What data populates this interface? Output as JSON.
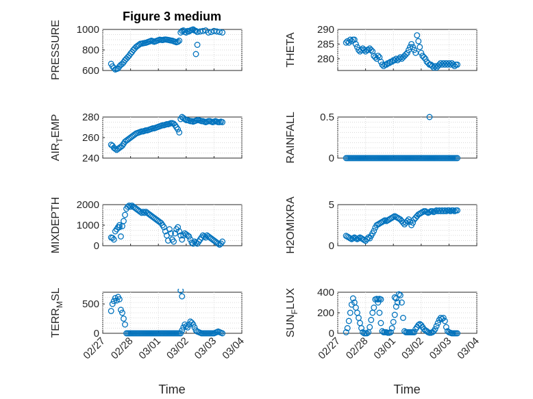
{
  "title": "Figure 3 medium",
  "xlabel": "Time",
  "xticks": [
    "02/27",
    "02/28",
    "03/01",
    "03/02",
    "03/03",
    "03/04"
  ],
  "colors": {
    "marker": "#0072bd",
    "axis": "#262626",
    "grid": "#d9d9d9"
  },
  "chart_data": [
    {
      "type": "scatter",
      "name": "PRESSURE",
      "ylabel": "PRESSURE",
      "ylim": [
        600,
        1000
      ],
      "yticks": [
        "600",
        "800",
        "1000"
      ],
      "grid": true,
      "x": [
        0.3,
        0.35,
        0.4,
        0.45,
        0.5,
        0.55,
        0.6,
        0.65,
        0.7,
        0.75,
        0.8,
        0.85,
        0.9,
        0.95,
        1.0,
        1.05,
        1.1,
        1.15,
        1.2,
        1.25,
        1.3,
        1.35,
        1.4,
        1.45,
        1.5,
        1.55,
        1.6,
        1.65,
        1.7,
        1.75,
        1.8,
        1.85,
        1.9,
        1.95,
        2.0,
        2.05,
        2.1,
        2.15,
        2.2,
        2.25,
        2.3,
        2.35,
        2.4,
        2.45,
        2.5,
        2.55,
        2.6,
        2.65,
        2.7,
        2.75,
        2.8,
        2.85,
        2.9,
        2.95,
        3.0,
        3.05,
        3.1,
        3.15,
        3.2,
        3.25,
        3.3,
        3.35,
        3.4,
        3.5,
        3.6,
        3.7,
        3.8,
        3.9,
        4.0,
        4.1,
        4.2,
        4.3,
        3.35,
        3.4
      ],
      "y": [
        665,
        640,
        625,
        610,
        615,
        620,
        640,
        655,
        665,
        680,
        700,
        715,
        730,
        745,
        765,
        780,
        800,
        815,
        830,
        840,
        850,
        860,
        862,
        865,
        868,
        870,
        875,
        880,
        885,
        890,
        885,
        880,
        885,
        890,
        895,
        900,
        898,
        896,
        900,
        902,
        900,
        898,
        895,
        892,
        890,
        885,
        880,
        875,
        880,
        890,
        970,
        985,
        990,
        975,
        970,
        985,
        980,
        990,
        995,
        1000,
        990,
        985,
        975,
        980,
        985,
        990,
        970,
        975,
        985,
        980,
        975,
        970,
        760,
        850
      ]
    },
    {
      "type": "scatter",
      "name": "THETA",
      "ylabel": "THETA",
      "ylim": [
        276,
        290
      ],
      "yticks": [
        "280",
        "285",
        "290"
      ],
      "grid": true,
      "x": [
        0.3,
        0.35,
        0.4,
        0.45,
        0.5,
        0.55,
        0.6,
        0.65,
        0.7,
        0.75,
        0.8,
        0.85,
        0.9,
        0.95,
        1.0,
        1.05,
        1.1,
        1.15,
        1.2,
        1.25,
        1.3,
        1.35,
        1.4,
        1.45,
        1.5,
        1.55,
        1.6,
        1.65,
        1.7,
        1.75,
        1.8,
        1.85,
        1.9,
        1.95,
        2.0,
        2.05,
        2.1,
        2.15,
        2.2,
        2.25,
        2.3,
        2.35,
        2.4,
        2.45,
        2.5,
        2.55,
        2.6,
        2.65,
        2.7,
        2.75,
        2.8,
        2.85,
        2.9,
        2.95,
        3.0,
        3.05,
        3.1,
        3.15,
        3.2,
        3.25,
        3.3,
        3.35,
        3.4,
        3.45,
        3.5,
        3.55,
        3.6,
        3.65,
        3.7,
        3.75,
        3.8,
        3.85,
        3.9,
        3.95,
        4.0,
        4.05,
        4.1,
        4.15,
        4.2,
        4.25,
        4.3
      ],
      "y": [
        285.5,
        286,
        285.5,
        286.5,
        286,
        286.5,
        286.5,
        285,
        284,
        283,
        282.5,
        283,
        283.5,
        283,
        282.5,
        283,
        283,
        283.5,
        283,
        282.5,
        281,
        280.5,
        280,
        281,
        280.5,
        279,
        278,
        277.5,
        278,
        278,
        278.5,
        278.5,
        279,
        279,
        279.5,
        279.5,
        280,
        279.5,
        280,
        280.5,
        280,
        280.5,
        281,
        281.5,
        282,
        283,
        284,
        285,
        284,
        283,
        282,
        288,
        286,
        284,
        282,
        281,
        280.5,
        280,
        279,
        278.5,
        278,
        278,
        277.5,
        277,
        277.5,
        277,
        277.5,
        278,
        278.5,
        278,
        278.5,
        278,
        278.5,
        278,
        278.5,
        278,
        278.5,
        278,
        277.5,
        278,
        278
      ]
    },
    {
      "type": "scatter",
      "name": "AIR_TEMP",
      "ylabel": "AIR_TEMP",
      "ylim": [
        240,
        280
      ],
      "yticks": [
        "240",
        "260",
        "280"
      ],
      "grid": true,
      "x": [
        0.3,
        0.35,
        0.4,
        0.45,
        0.5,
        0.55,
        0.6,
        0.65,
        0.7,
        0.75,
        0.8,
        0.85,
        0.9,
        0.95,
        1.0,
        1.05,
        1.1,
        1.15,
        1.2,
        1.25,
        1.3,
        1.35,
        1.4,
        1.45,
        1.5,
        1.55,
        1.6,
        1.65,
        1.7,
        1.75,
        1.8,
        1.85,
        1.9,
        1.95,
        2.0,
        2.05,
        2.1,
        2.15,
        2.2,
        2.25,
        2.3,
        2.35,
        2.4,
        2.45,
        2.5,
        2.55,
        2.6,
        2.65,
        2.7,
        2.75,
        2.8,
        2.85,
        2.9,
        2.95,
        3.0,
        3.05,
        3.1,
        3.15,
        3.2,
        3.25,
        3.3,
        3.35,
        3.4,
        3.45,
        3.5,
        3.55,
        3.6,
        3.65,
        3.7,
        3.75,
        3.8,
        3.85,
        3.9,
        3.95,
        4.0,
        4.05,
        4.1,
        4.15,
        4.2,
        4.25,
        4.3
      ],
      "y": [
        253,
        252,
        250,
        249,
        248,
        249,
        250,
        251,
        252,
        254,
        256,
        257,
        258,
        259,
        260,
        261,
        262,
        263,
        264,
        264.5,
        265,
        265.5,
        266,
        266,
        266.5,
        267,
        267,
        267.5,
        268,
        268.5,
        269,
        269,
        269.5,
        270,
        270.5,
        271,
        271.5,
        272,
        272,
        272.5,
        273,
        273,
        273.5,
        274,
        274,
        273.5,
        272,
        270,
        268,
        265,
        278,
        280,
        279,
        278,
        277,
        277,
        276.5,
        276,
        276,
        275.5,
        276,
        276.5,
        277,
        277,
        276.5,
        276,
        276,
        275.5,
        275,
        275.5,
        276,
        276,
        275.5,
        275,
        275.5,
        276,
        275.5,
        275,
        275,
        275.5,
        275
      ]
    },
    {
      "type": "scatter",
      "name": "RAINFALL",
      "ylabel": "RAINFALL",
      "ylim": [
        0,
        0.5
      ],
      "yticks": [
        "0",
        "0.5"
      ],
      "grid": true,
      "x": [
        0.3,
        0.35,
        0.4,
        0.45,
        0.5,
        0.55,
        0.6,
        0.65,
        0.7,
        0.75,
        0.8,
        0.85,
        0.9,
        0.95,
        1.0,
        1.05,
        1.1,
        1.15,
        1.2,
        1.25,
        1.3,
        1.35,
        1.4,
        1.45,
        1.5,
        1.55,
        1.6,
        1.65,
        1.7,
        1.75,
        1.8,
        1.85,
        1.9,
        1.95,
        2.0,
        2.05,
        2.1,
        2.15,
        2.2,
        2.25,
        2.3,
        2.35,
        2.4,
        2.45,
        2.5,
        2.55,
        2.6,
        2.65,
        2.7,
        2.75,
        2.8,
        2.85,
        2.9,
        2.95,
        3.0,
        3.05,
        3.1,
        3.15,
        3.2,
        3.25,
        3.3,
        3.35,
        3.4,
        3.45,
        3.5,
        3.55,
        3.6,
        3.65,
        3.7,
        3.75,
        3.8,
        3.85,
        3.9,
        3.95,
        4.0,
        4.05,
        4.1,
        4.15,
        4.2,
        4.25,
        4.3,
        3.3
      ],
      "y": [
        0,
        0,
        0,
        0,
        0,
        0,
        0,
        0,
        0,
        0,
        0,
        0,
        0,
        0,
        0,
        0,
        0,
        0,
        0,
        0,
        0,
        0,
        0,
        0,
        0,
        0,
        0,
        0,
        0,
        0,
        0,
        0,
        0,
        0,
        0,
        0,
        0,
        0,
        0,
        0,
        0,
        0,
        0,
        0,
        0,
        0,
        0,
        0,
        0,
        0,
        0,
        0,
        0,
        0,
        0,
        0,
        0,
        0,
        0,
        0,
        0,
        0,
        0,
        0,
        0,
        0,
        0,
        0,
        0,
        0,
        0,
        0,
        0,
        0,
        0,
        0,
        0,
        0,
        0,
        0,
        0,
        0.5
      ]
    },
    {
      "type": "scatter",
      "name": "MIXDEPTH",
      "ylabel": "MIXDEPTH",
      "ylim": [
        0,
        2000
      ],
      "yticks": [
        "0",
        "1000",
        "2000"
      ],
      "grid": true,
      "x": [
        0.3,
        0.35,
        0.4,
        0.45,
        0.5,
        0.55,
        0.6,
        0.65,
        0.7,
        0.75,
        0.8,
        0.85,
        0.9,
        0.95,
        1.0,
        1.05,
        1.1,
        1.15,
        1.2,
        1.25,
        1.3,
        1.35,
        1.4,
        1.45,
        1.5,
        1.55,
        1.6,
        1.65,
        1.7,
        1.75,
        1.8,
        1.85,
        1.9,
        1.95,
        2.0,
        2.05,
        2.1,
        2.15,
        2.2,
        2.25,
        2.3,
        2.35,
        2.4,
        2.45,
        2.5,
        2.55,
        2.6,
        2.65,
        2.7,
        2.75,
        2.8,
        2.85,
        2.9,
        2.95,
        3.0,
        3.05,
        3.1,
        3.15,
        3.2,
        3.25,
        3.3,
        3.35,
        3.4,
        3.45,
        3.5,
        3.55,
        3.6,
        3.65,
        3.7,
        3.75,
        3.8,
        3.85,
        3.9,
        3.95,
        4.0,
        4.05,
        4.1,
        4.15,
        4.2,
        4.25,
        4.3,
        0.6
      ],
      "y": [
        400,
        380,
        300,
        700,
        800,
        900,
        1000,
        450,
        950,
        1200,
        1500,
        1800,
        1900,
        1950,
        1900,
        1950,
        1900,
        1850,
        1800,
        1750,
        1700,
        1650,
        1600,
        1650,
        1600,
        1650,
        1600,
        1550,
        1500,
        1450,
        1400,
        1350,
        1300,
        1250,
        1200,
        1150,
        1100,
        1000,
        900,
        700,
        500,
        250,
        800,
        600,
        300,
        200,
        600,
        800,
        900,
        700,
        500,
        300,
        500,
        600,
        550,
        500,
        450,
        300,
        150,
        100,
        200,
        150,
        100,
        200,
        300,
        400,
        500,
        450,
        400,
        500,
        450,
        400,
        350,
        300,
        250,
        200,
        150,
        100,
        50,
        100,
        200,
        900
      ]
    },
    {
      "type": "scatter",
      "name": "H2OMIXRA",
      "ylabel": "H2OMIXRA",
      "ylim": [
        0,
        5
      ],
      "yticks": [
        "0",
        "5"
      ],
      "grid": true,
      "x": [
        0.3,
        0.35,
        0.4,
        0.45,
        0.5,
        0.55,
        0.6,
        0.65,
        0.7,
        0.75,
        0.8,
        0.85,
        0.9,
        0.95,
        1.0,
        1.05,
        1.1,
        1.15,
        1.2,
        1.25,
        1.3,
        1.35,
        1.4,
        1.45,
        1.5,
        1.55,
        1.6,
        1.65,
        1.7,
        1.75,
        1.8,
        1.85,
        1.9,
        1.95,
        2.0,
        2.05,
        2.1,
        2.15,
        2.2,
        2.25,
        2.3,
        2.35,
        2.4,
        2.45,
        2.5,
        2.55,
        2.6,
        2.65,
        2.7,
        2.75,
        2.8,
        2.85,
        2.9,
        2.95,
        3.0,
        3.05,
        3.1,
        3.15,
        3.2,
        3.25,
        3.3,
        3.35,
        3.4,
        3.45,
        3.5,
        3.55,
        3.6,
        3.65,
        3.7,
        3.75,
        3.8,
        3.85,
        3.9,
        3.95,
        4.0,
        4.05,
        4.1,
        4.15,
        4.2,
        4.25,
        4.3
      ],
      "y": [
        1.2,
        1.1,
        1.0,
        0.9,
        0.8,
        0.9,
        1.0,
        0.9,
        0.8,
        0.9,
        1.0,
        0.9,
        0.8,
        0.7,
        0.6,
        0.8,
        1.0,
        0.9,
        1.2,
        1.5,
        1.8,
        2.2,
        2.5,
        2.6,
        2.7,
        2.8,
        2.9,
        3.0,
        3.1,
        3.0,
        3.1,
        3.2,
        3.3,
        3.4,
        3.5,
        3.6,
        3.5,
        3.4,
        3.3,
        3.2,
        3.0,
        2.8,
        2.6,
        2.8,
        3.0,
        3.2,
        2.9,
        2.5,
        2.8,
        3.2,
        3.4,
        3.6,
        3.8,
        3.9,
        4.0,
        4.1,
        4.2,
        4.2,
        4.1,
        4.0,
        4.1,
        4.2,
        4.2,
        4.1,
        4.2,
        4.3,
        4.2,
        4.3,
        4.2,
        4.3,
        4.2,
        4.3,
        4.2,
        4.3,
        4.3,
        4.2,
        4.3,
        4.3,
        4.2,
        4.3,
        4.3
      ]
    },
    {
      "type": "scatter",
      "name": "TERR_MSL",
      "ylabel": "TERR_MSL",
      "ylim": [
        0,
        700
      ],
      "yticks": [
        "0",
        "500"
      ],
      "grid": true,
      "x": [
        0.3,
        0.35,
        0.4,
        0.45,
        0.5,
        0.55,
        0.6,
        0.65,
        0.7,
        0.75,
        0.8,
        0.85,
        0.9,
        0.95,
        1.0,
        1.05,
        1.1,
        1.15,
        1.2,
        1.25,
        1.3,
        1.35,
        1.4,
        1.45,
        1.5,
        1.55,
        1.6,
        1.65,
        1.7,
        1.75,
        1.8,
        1.85,
        1.9,
        1.95,
        2.0,
        2.05,
        2.1,
        2.15,
        2.2,
        2.25,
        2.3,
        2.35,
        2.4,
        2.45,
        2.5,
        2.55,
        2.6,
        2.65,
        2.7,
        2.75,
        2.8,
        2.85,
        2.9,
        2.95,
        3.0,
        3.05,
        3.1,
        3.15,
        3.2,
        3.25,
        3.3,
        3.35,
        3.4,
        3.45,
        3.5,
        3.55,
        3.6,
        3.65,
        3.7,
        3.75,
        3.8,
        3.85,
        3.9,
        3.95,
        4.0,
        4.05,
        4.1,
        4.15,
        4.2,
        4.25,
        4.3,
        2.8,
        2.85
      ],
      "y": [
        380,
        500,
        550,
        600,
        560,
        620,
        580,
        400,
        350,
        250,
        150,
        0,
        0,
        0,
        0,
        0,
        0,
        0,
        0,
        0,
        0,
        0,
        0,
        0,
        0,
        0,
        0,
        0,
        0,
        0,
        0,
        0,
        0,
        0,
        0,
        0,
        0,
        0,
        0,
        0,
        0,
        0,
        0,
        0,
        0,
        0,
        0,
        0,
        0,
        0,
        0,
        50,
        100,
        150,
        120,
        100,
        150,
        200,
        180,
        150,
        100,
        50,
        30,
        20,
        10,
        0,
        0,
        0,
        0,
        0,
        0,
        0,
        0,
        0,
        0,
        10,
        20,
        30,
        20,
        10,
        0,
        730,
        630
      ]
    },
    {
      "type": "scatter",
      "name": "SUN_FLUX",
      "ylabel": "SUN_FLUX",
      "ylim": [
        0,
        400
      ],
      "yticks": [
        "0",
        "200",
        "400"
      ],
      "grid": true,
      "x": [
        0.3,
        0.35,
        0.4,
        0.45,
        0.5,
        0.55,
        0.6,
        0.65,
        0.7,
        0.75,
        0.8,
        0.85,
        0.9,
        0.95,
        1.0,
        1.05,
        1.1,
        1.15,
        1.2,
        1.25,
        1.3,
        1.35,
        1.4,
        1.45,
        1.5,
        1.55,
        1.6,
        1.65,
        1.7,
        1.75,
        1.8,
        1.85,
        1.9,
        1.95,
        2.0,
        2.05,
        2.1,
        2.15,
        2.2,
        2.25,
        2.3,
        2.35,
        2.4,
        2.45,
        2.5,
        2.55,
        2.6,
        2.65,
        2.7,
        2.75,
        2.8,
        2.85,
        2.9,
        2.95,
        3.0,
        3.05,
        3.1,
        3.15,
        3.2,
        3.25,
        3.3,
        3.35,
        3.4,
        3.45,
        3.5,
        3.55,
        3.6,
        3.65,
        3.7,
        3.75,
        3.8,
        3.85,
        3.9,
        3.95,
        4.0,
        4.05,
        4.1,
        4.15,
        4.2,
        4.25,
        4.3,
        1.45,
        1.5,
        1.55,
        2.05,
        2.1
      ],
      "y": [
        10,
        50,
        120,
        200,
        280,
        340,
        300,
        250,
        200,
        150,
        100,
        50,
        10,
        0,
        0,
        0,
        10,
        60,
        130,
        200,
        250,
        330,
        335,
        300,
        200,
        100,
        20,
        10,
        10,
        10,
        5,
        5,
        10,
        50,
        110,
        180,
        260,
        300,
        380,
        370,
        300,
        150,
        20,
        10,
        10,
        10,
        10,
        10,
        10,
        10,
        40,
        60,
        80,
        90,
        80,
        60,
        40,
        30,
        20,
        10,
        5,
        5,
        10,
        20,
        40,
        70,
        100,
        130,
        150,
        140,
        150,
        120,
        60,
        20,
        10,
        5,
        0,
        0,
        0,
        0,
        0,
        330,
        335,
        330,
        350,
        340
      ]
    }
  ]
}
